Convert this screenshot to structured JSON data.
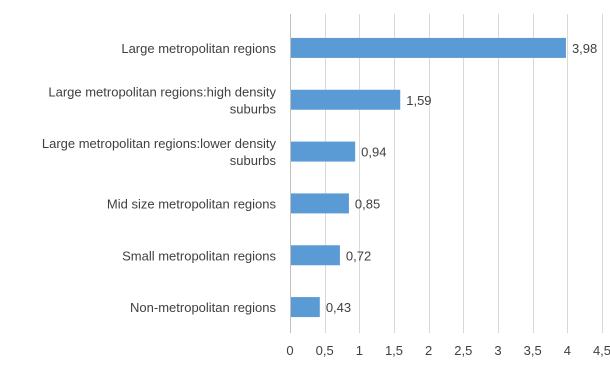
{
  "chart_data": {
    "type": "bar",
    "orientation": "horizontal",
    "categories": [
      "Large metropolitan regions",
      "Large metropolitan regions:high density suburbs",
      "Large metropolitan regions:lower density suburbs",
      "Mid size metropolitan regions",
      "Small metropolitan regions",
      "Non-metropolitan regions"
    ],
    "category_lines": [
      [
        "Large metropolitan regions"
      ],
      [
        "Large metropolitan regions:high density",
        "suburbs"
      ],
      [
        "Large metropolitan regions:lower density",
        "suburbs"
      ],
      [
        "Mid size metropolitan regions"
      ],
      [
        "Small metropolitan regions"
      ],
      [
        "Non-metropolitan regions"
      ]
    ],
    "values": [
      3.98,
      1.59,
      0.94,
      0.85,
      0.72,
      0.43
    ],
    "value_labels": [
      "3,98",
      "1,59",
      "0,94",
      "0,85",
      "0,72",
      "0,43"
    ],
    "xlim": [
      0,
      4.5
    ],
    "ticks": [
      0,
      0.5,
      1,
      1.5,
      2,
      2.5,
      3,
      3.5,
      4,
      4.5
    ],
    "tick_labels": [
      "0",
      "0,5",
      "1",
      "1,5",
      "2",
      "2,5",
      "3",
      "3,5",
      "4",
      "4,5"
    ],
    "title": "",
    "xlabel": "",
    "ylabel": "",
    "grid": "vertical",
    "legend": "none",
    "bar_color": "#5b9bd5"
  }
}
